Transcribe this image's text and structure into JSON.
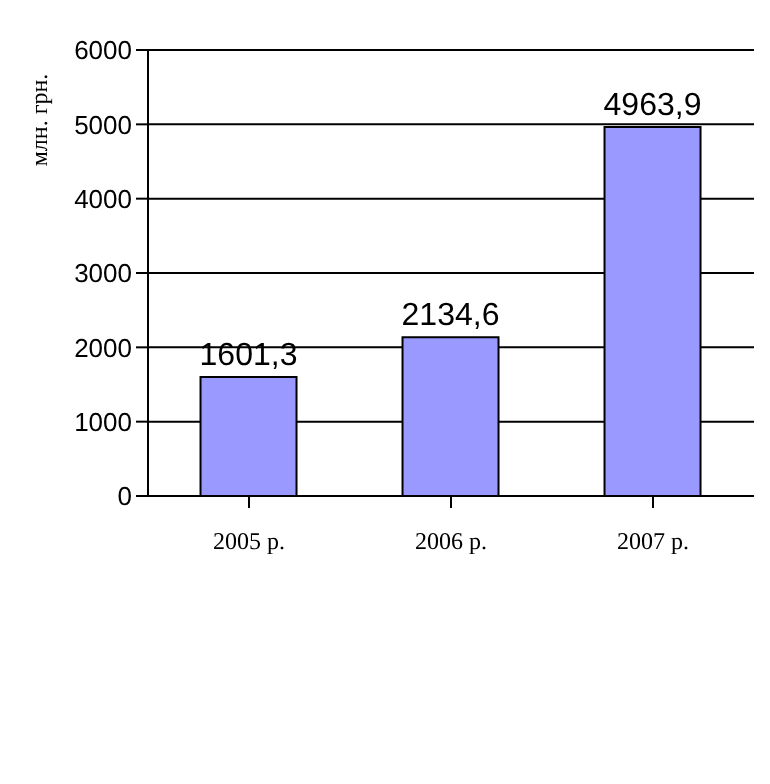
{
  "chart_data": {
    "type": "bar",
    "ylabel": "млн. грн.",
    "categories": [
      "2005 р.",
      "2006 р.",
      "2007 р."
    ],
    "values": [
      1601.3,
      2134.6,
      4963.9
    ],
    "value_labels": [
      "1601,3",
      "2134,6",
      "4963,9"
    ],
    "color": "#9999ff",
    "ylim": [
      0,
      6000
    ],
    "yticks": [
      0,
      1000,
      2000,
      3000,
      4000,
      5000,
      6000
    ],
    "grid": "y"
  }
}
